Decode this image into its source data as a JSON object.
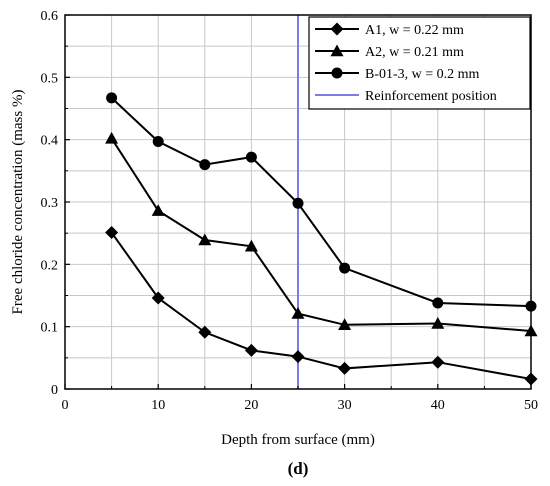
{
  "chart_data": {
    "type": "line",
    "xlabel": "Depth from surface (mm)",
    "ylabel": "Free chloride concentration (mass %)",
    "panel_label": "(d)",
    "xlim": [
      0,
      50
    ],
    "ylim": [
      0,
      0.6
    ],
    "xticks": [
      0,
      10,
      20,
      30,
      40,
      50
    ],
    "yticks": [
      0,
      0.1,
      0.2,
      0.3,
      0.4,
      0.5,
      0.6
    ],
    "grid": true,
    "legend_position": "top-right",
    "series": [
      {
        "name": "A1, w = 0.22 mm",
        "marker": "diamond",
        "color": "#000000",
        "x": [
          5,
          10,
          15,
          20,
          25,
          30,
          40,
          50
        ],
        "y": [
          0.251,
          0.146,
          0.091,
          0.062,
          0.052,
          0.033,
          0.043,
          0.016
        ]
      },
      {
        "name": "A2, w = 0.21 mm",
        "marker": "triangle",
        "color": "#000000",
        "x": [
          5,
          10,
          15,
          20,
          25,
          30,
          40,
          50
        ],
        "y": [
          0.402,
          0.286,
          0.239,
          0.229,
          0.121,
          0.103,
          0.105,
          0.093
        ]
      },
      {
        "name": "B-01-3, w = 0.2 mm",
        "marker": "circle",
        "color": "#000000",
        "x": [
          5,
          10,
          15,
          20,
          25,
          30,
          40,
          50
        ],
        "y": [
          0.467,
          0.397,
          0.36,
          0.372,
          0.298,
          0.194,
          0.138,
          0.133
        ]
      }
    ],
    "reference_line": {
      "name": "Reinforcement position",
      "x": 25,
      "color": "#7b7bea"
    }
  }
}
